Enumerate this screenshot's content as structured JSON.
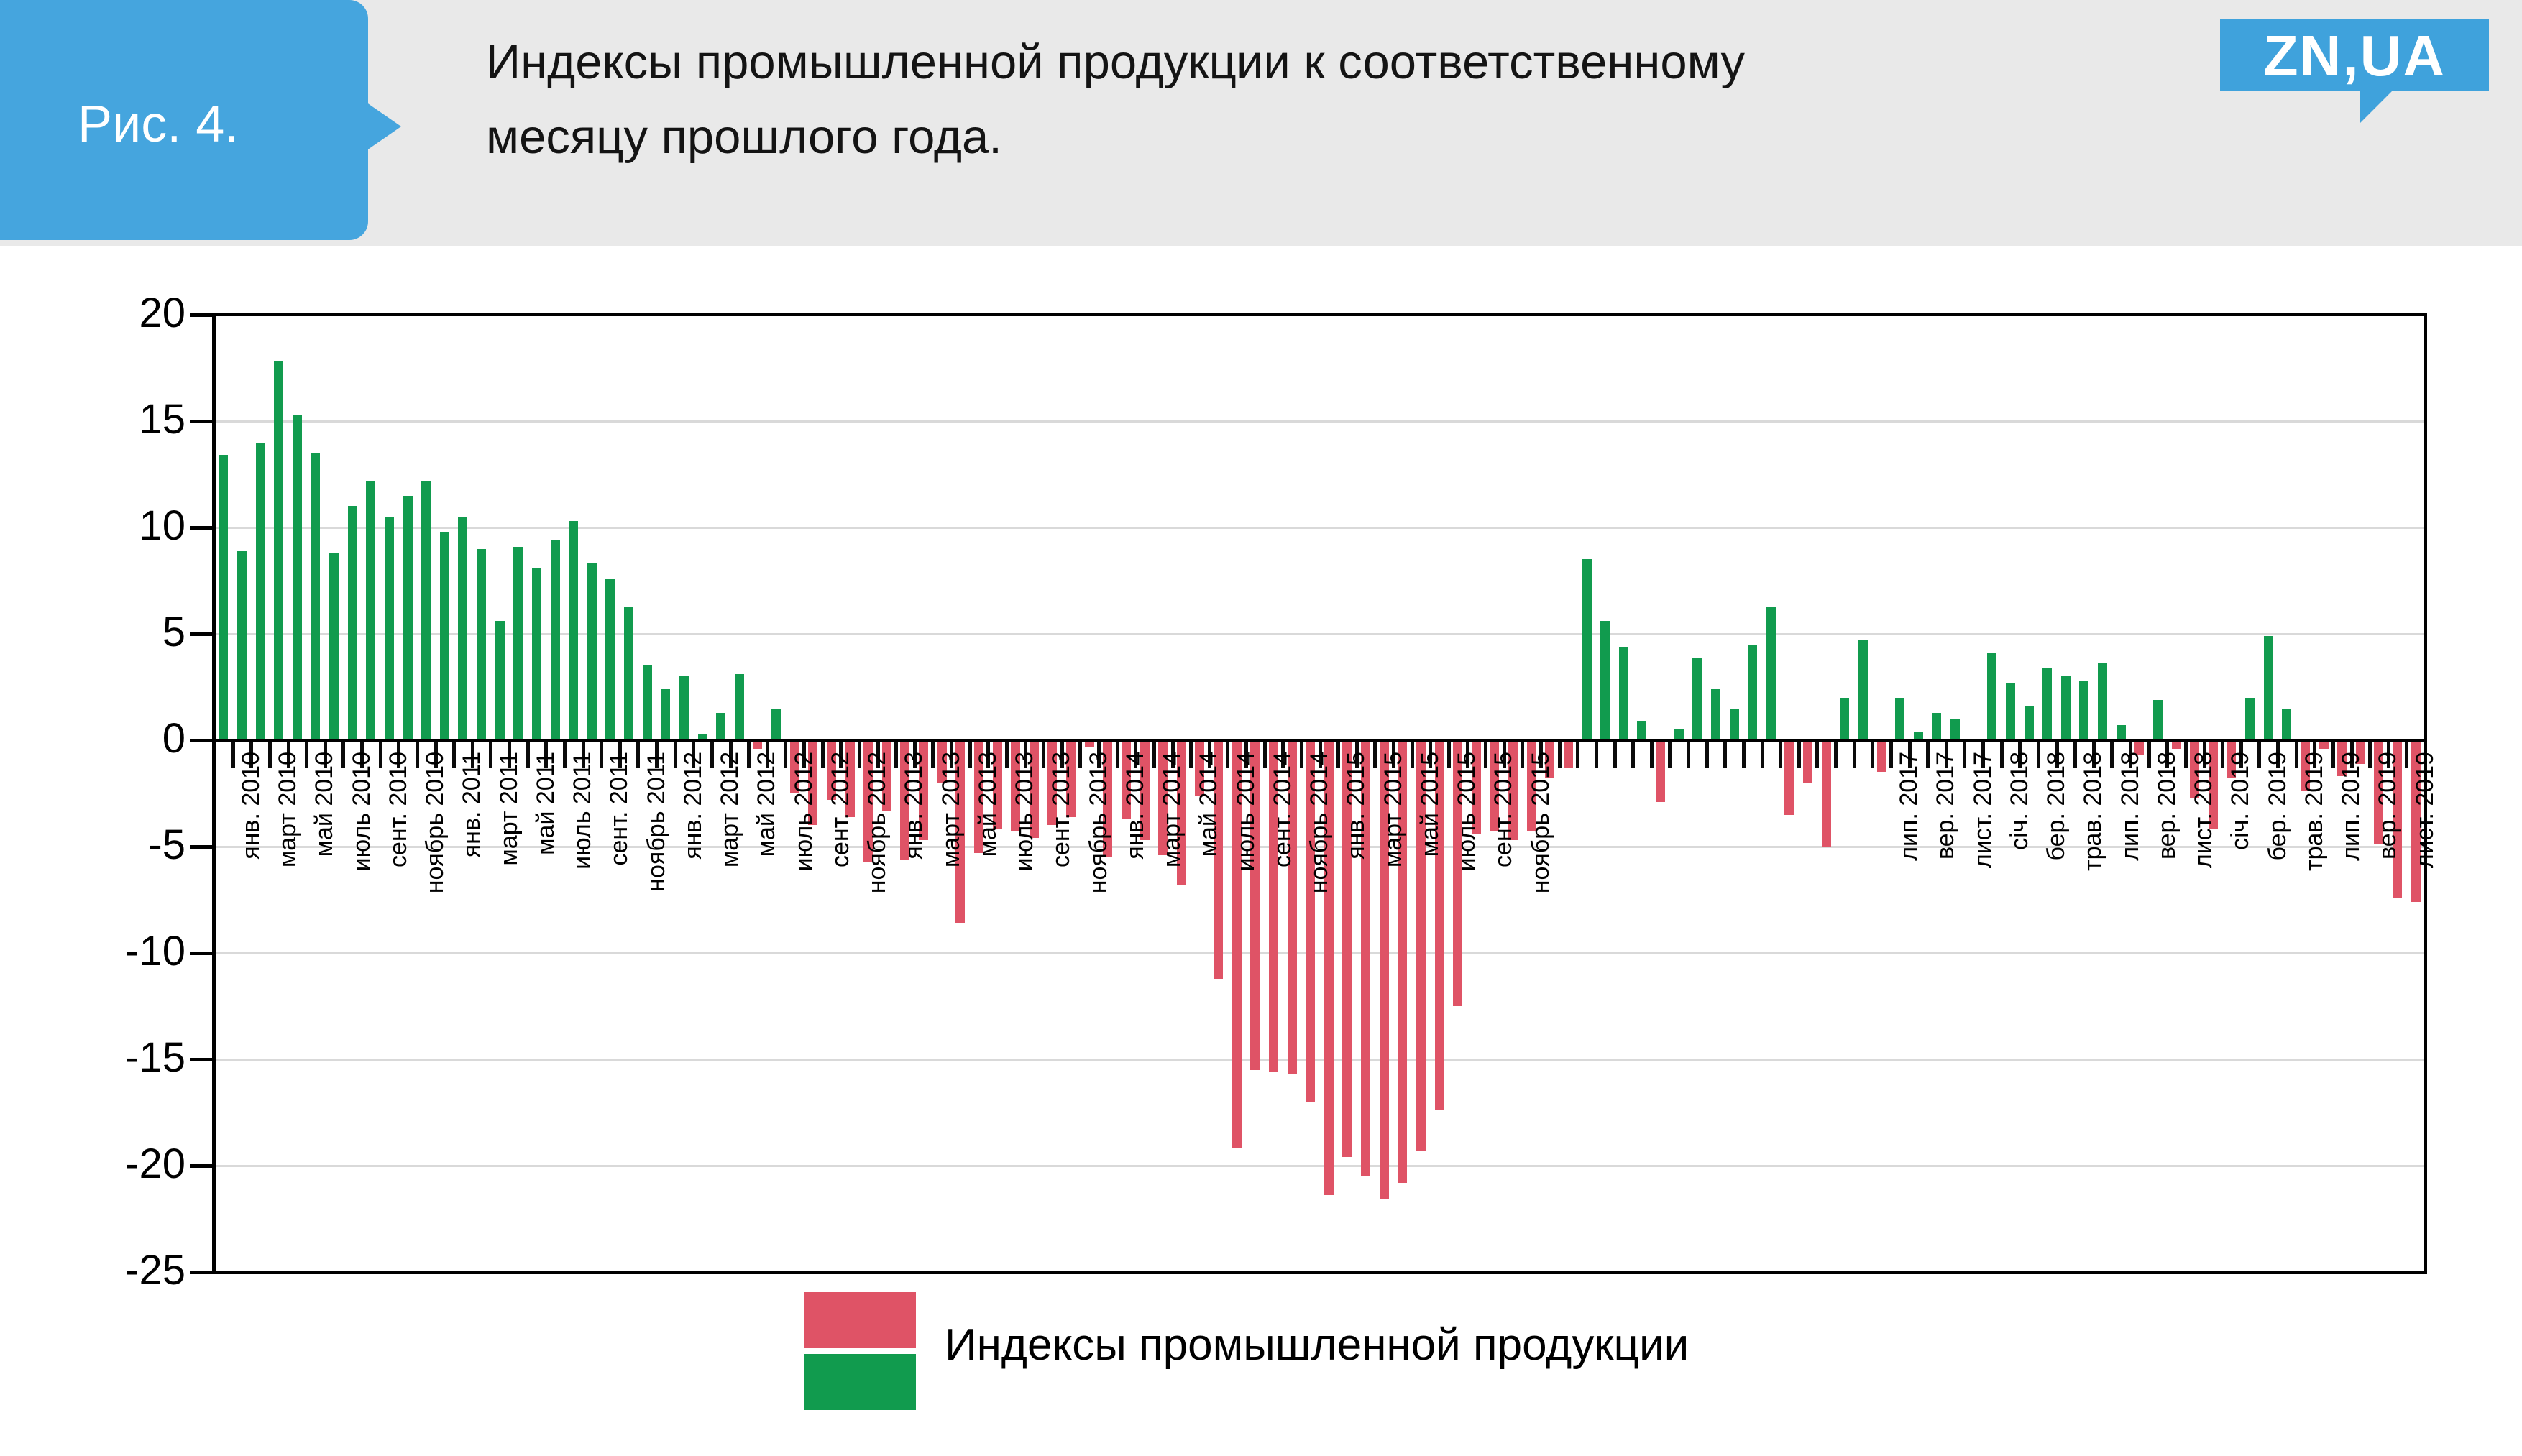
{
  "figure_tag": "Рис. 4.",
  "title_line1": "Индексы промышленной продукции к соответственному",
  "title_line2": "месяцу прошлого года.",
  "logo_text": "ZN,UA",
  "legend": {
    "label": "Индексы промышленной продукции",
    "positive_color": "#119b4e",
    "negative_color": "#df5366"
  },
  "chart_data": {
    "type": "bar",
    "title": "Индексы промышленной продукции к соответственному месяцу прошлого года",
    "xlabel": "",
    "ylabel": "",
    "ylim": [
      -25,
      20
    ],
    "grid": true,
    "legend_position": "bottom",
    "y_ticks": [
      20,
      15,
      10,
      5,
      0,
      -5,
      -10,
      -15,
      -20,
      -25
    ],
    "series_name": "Индексы промышленной продукции",
    "x_unit": "месяц",
    "points": [
      [
        "янв. 2010",
        13.4
      ],
      [
        "",
        8.9
      ],
      [
        "март 2010",
        14
      ],
      [
        "",
        17.8
      ],
      [
        "май 2010",
        15.3
      ],
      [
        "",
        13.5
      ],
      [
        "июль 2010",
        8.8
      ],
      [
        "",
        11
      ],
      [
        "сент. 2010",
        12.2
      ],
      [
        "",
        10.5
      ],
      [
        "ноябрь 2010",
        11.5
      ],
      [
        "",
        12.2
      ],
      [
        "янв. 2011",
        9.8
      ],
      [
        "",
        10.5
      ],
      [
        "март 2011",
        9
      ],
      [
        "",
        5.6
      ],
      [
        "май 2011",
        9.1
      ],
      [
        "",
        8.1
      ],
      [
        "июль 2011",
        9.4
      ],
      [
        "",
        10.3
      ],
      [
        "сент. 2011",
        8.3
      ],
      [
        "",
        7.6
      ],
      [
        "ноябрь 2011",
        6.3
      ],
      [
        "",
        3.5
      ],
      [
        "янв. 2012",
        2.4
      ],
      [
        "",
        3
      ],
      [
        "март 2012",
        0.3
      ],
      [
        "",
        1.3
      ],
      [
        "май 2012",
        3.1
      ],
      [
        "",
        -0.4
      ],
      [
        "июль 2012",
        1.5
      ],
      [
        "",
        -2.5
      ],
      [
        "сент. 2012",
        -4
      ],
      [
        "",
        -2.8
      ],
      [
        "ноябрь 2012",
        -3.6
      ],
      [
        "",
        -5.7
      ],
      [
        "янв. 2013",
        -3.3
      ],
      [
        "",
        -5.6
      ],
      [
        "март 2013",
        -4.7
      ],
      [
        "",
        -2
      ],
      [
        "май 2013",
        -8.6
      ],
      [
        "",
        -5.3
      ],
      [
        "июль 2013",
        -4.2
      ],
      [
        "",
        -4.3
      ],
      [
        "сент. 2013",
        -4.6
      ],
      [
        "",
        -4
      ],
      [
        "ноябрь 2013",
        -3.6
      ],
      [
        "",
        -0.3
      ],
      [
        "янв. 2014",
        -5.5
      ],
      [
        "",
        -3.7
      ],
      [
        "март 2014",
        -4.7
      ],
      [
        "",
        -5.4
      ],
      [
        "май 2014",
        -6.8
      ],
      [
        "",
        -2.6
      ],
      [
        "июль 2014",
        -11.2
      ],
      [
        "",
        -19.2
      ],
      [
        "сент. 2014",
        -15.5
      ],
      [
        "",
        -15.6
      ],
      [
        "ноябрь 2014",
        -15.7
      ],
      [
        "",
        -17
      ],
      [
        "янв. 2015",
        -21.4
      ],
      [
        "",
        -19.6
      ],
      [
        "март 2015",
        -20.5
      ],
      [
        "",
        -21.6
      ],
      [
        "май 2015",
        -20.8
      ],
      [
        "",
        -19.3
      ],
      [
        "июль 2015",
        -17.4
      ],
      [
        "",
        -12.5
      ],
      [
        "сент. 2015",
        -4.4
      ],
      [
        "",
        -4.3
      ],
      [
        "ноябрь 2015",
        -4.7
      ],
      [
        "",
        -4.3
      ],
      [
        "",
        -1.8
      ],
      [
        "",
        -1.3
      ],
      [
        "",
        8.5
      ],
      [
        "",
        5.6
      ],
      [
        "",
        4.4
      ],
      [
        "",
        0.9
      ],
      [
        "",
        -2.9
      ],
      [
        "",
        0.5
      ],
      [
        "",
        3.9
      ],
      [
        "",
        2.4
      ],
      [
        "",
        1.5
      ],
      [
        "",
        4.5
      ],
      [
        "",
        6.3
      ],
      [
        "",
        -3.5
      ],
      [
        "",
        -2
      ],
      [
        "",
        -5
      ],
      [
        "",
        2
      ],
      [
        "",
        4.7
      ],
      [
        "лип. 2017",
        -1.5
      ],
      [
        "",
        2
      ],
      [
        "вер. 2017",
        0.4
      ],
      [
        "",
        1.3
      ],
      [
        "лист. 2017",
        1
      ],
      [
        "",
        0
      ],
      [
        "січ. 2018",
        4.1
      ],
      [
        "",
        2.7
      ],
      [
        "бер. 2018",
        1.6
      ],
      [
        "",
        3.4
      ],
      [
        "трав. 2018",
        3
      ],
      [
        "",
        2.8
      ],
      [
        "лип. 2018",
        3.6
      ],
      [
        "",
        0.7
      ],
      [
        "вер. 2018",
        -0.7
      ],
      [
        "",
        1.9
      ],
      [
        "лист. 2018",
        -0.4
      ],
      [
        "",
        -2.7
      ],
      [
        "січ. 2019",
        -4.2
      ],
      [
        "",
        -1.8
      ],
      [
        "бер. 2019",
        2
      ],
      [
        "",
        4.9
      ],
      [
        "трав. 2019",
        1.5
      ],
      [
        "",
        -2.4
      ],
      [
        "лип. 2019",
        -0.4
      ],
      [
        "",
        -1.7
      ],
      [
        "вер. 2019",
        -1.1
      ],
      [
        "",
        -4.9
      ],
      [
        "лист. 2019",
        -7.4
      ],
      [
        "",
        -7.6
      ]
    ]
  }
}
